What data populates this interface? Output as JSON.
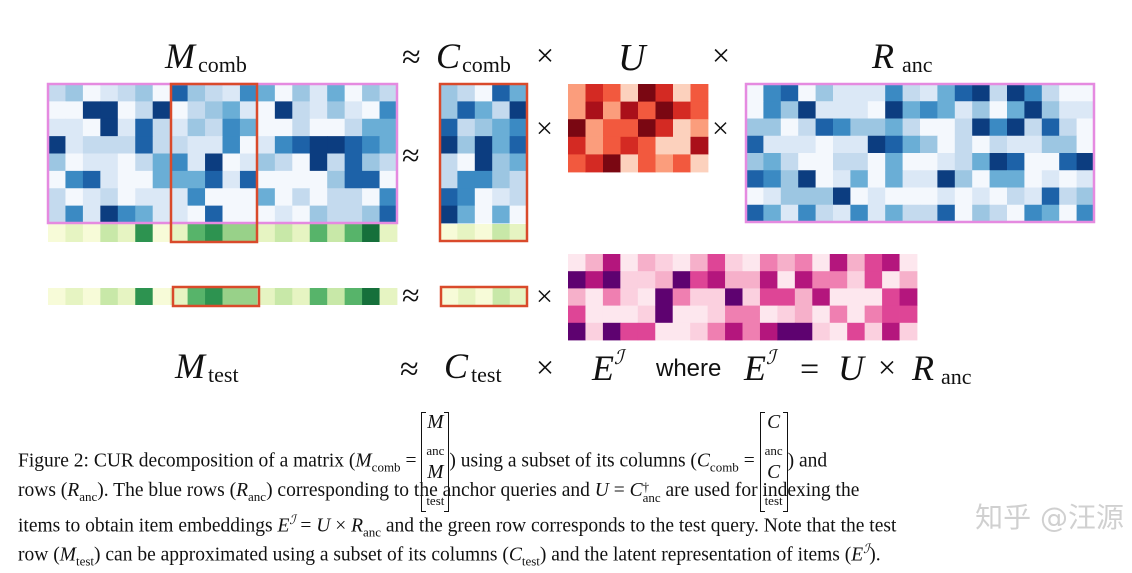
{
  "figure": {
    "labels": {
      "m_comb": "M",
      "m_comb_sub": "comb",
      "approx1": "≈",
      "c_comb": "C",
      "c_comb_sub": "comb",
      "times1": "×",
      "u": "U",
      "times2": "×",
      "r_anc": "R",
      "r_anc_sub": "anc",
      "m_test": "M",
      "m_test_sub": "test",
      "approx2": "≈",
      "c_test": "C",
      "c_test_sub": "test",
      "times3": "×",
      "e": "E",
      "e_sup": "ℐ",
      "where": "where",
      "e2": "E",
      "e2_sup": "ℐ",
      "eq": "=",
      "u2": "U",
      "times4": "×",
      "r2": "R",
      "r2_sub": "anc",
      "approx_mid": "≈",
      "times_mid": "×",
      "times_mid2": "×",
      "approx_row": "≈",
      "times_row": "×"
    },
    "colors": {
      "pink_border": "#e58ae0",
      "red_border": "#d94a2b",
      "blue_scale": [
        "#f4f8fd",
        "#dbe8f6",
        "#c4daee",
        "#9cc6e2",
        "#6aaed6",
        "#3b8ac3",
        "#1d62a8",
        "#0c3d80"
      ],
      "green_scale": [
        "#f7fbd8",
        "#e6f4c2",
        "#c8e8a8",
        "#98d189",
        "#57b46a",
        "#2d9350",
        "#16703b"
      ],
      "red_scale": [
        "#fcd1bd",
        "#fb9d7c",
        "#f2593e",
        "#d42a23",
        "#aa101a",
        "#7a0712"
      ],
      "pink_scale": [
        "#fde7ee",
        "#fbd0df",
        "#f6b0ca",
        "#ef7fb1",
        "#de4596",
        "#b4167d",
        "#5e0270"
      ]
    }
  },
  "caption": {
    "fig_label": "Figure 2: CUR decomposition of a matrix (",
    "m_comb": "M",
    "m_comb_sub": "comb",
    "eq1": " = ",
    "mat1_top": "M",
    "mat1_top_sub": "anc",
    "mat1_bot": "M",
    "mat1_bot_sub": "test",
    "mid1": ") using a subset of its columns (",
    "c_comb": "C",
    "c_comb_sub": "comb",
    "eq2": " = ",
    "mat2_top": "C",
    "mat2_top_sub": "anc",
    "mat2_bot": "C",
    "mat2_bot_sub": "test",
    "end1": ") and",
    "line2_a": "rows (",
    "line2_r": "R",
    "line2_r_sub": "anc",
    "line2_b": "). The blue rows (",
    "line2_r2": "R",
    "line2_r2_sub": "anc",
    "line2_c": ") corresponding to the anchor queries and ",
    "line2_u": "U",
    "line2_eq": " = ",
    "line2_c2": "C",
    "line2_c2_sup": "†",
    "line2_c2_sub": "anc",
    "line2_d": " are used for indexing the",
    "line3_a": "items to obtain item embeddings ",
    "line3_e": "E",
    "line3_e_sup": "ℐ",
    "line3_b": " = ",
    "line3_u": "U",
    "line3_c": " × ",
    "line3_r": "R",
    "line3_r_sub": "anc",
    "line3_d": " and the green row corresponds to the test query. Note that the test",
    "line4_a": "row (",
    "line4_m": "M",
    "line4_m_sub": "test",
    "line4_b": ") can be approximated using a subset of its columns (",
    "line4_c": "C",
    "line4_c_sub": "test",
    "line4_d": ") and the latent representation of items (",
    "line4_e": "E",
    "line4_e_sup": "ℐ",
    "line4_f": ")."
  },
  "watermark": "知乎 @汪源"
}
